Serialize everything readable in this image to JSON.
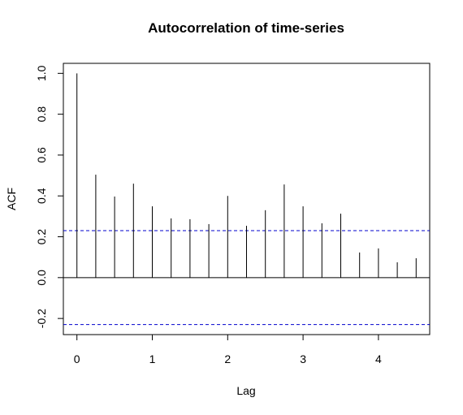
{
  "chart_data": {
    "type": "acf",
    "title": "Autocorrelation of time-series",
    "x_label": "Lag",
    "y_label": "ACF",
    "x": [
      0,
      0.25,
      0.5,
      0.75,
      1,
      1.25,
      1.5,
      1.75,
      2,
      2.25,
      2.5,
      2.75,
      3,
      3.25,
      3.5,
      3.75,
      4,
      4.25,
      4.5
    ],
    "values": [
      1.0,
      0.504,
      0.397,
      0.46,
      0.349,
      0.29,
      0.286,
      0.262,
      0.4,
      0.254,
      0.33,
      0.456,
      0.349,
      0.266,
      0.313,
      0.123,
      0.143,
      0.075,
      0.095
    ],
    "color": "#000000",
    "ci_lines": [
      0.23,
      -0.23
    ],
    "ci_color": "#0000cd",
    "xlim": [
      -0.18,
      4.68
    ],
    "ylim": [
      -0.279,
      1.049
    ],
    "xticks": [
      0,
      1,
      2,
      3,
      4
    ],
    "yticks": [
      -0.2,
      {
        "value": 0,
        "label": "0.0"
      },
      0.2,
      0.4,
      0.6,
      0.8,
      {
        "value": 1,
        "label": "1.0"
      }
    ]
  }
}
